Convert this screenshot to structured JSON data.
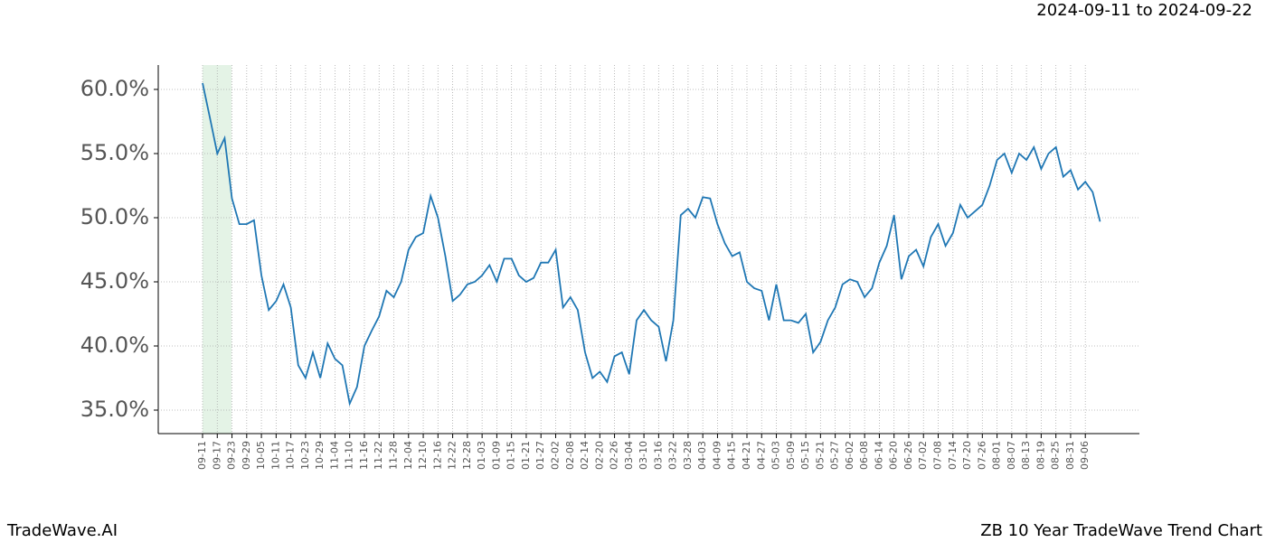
{
  "chart_data": {
    "type": "line",
    "title": "ZB 10 Year TradeWave Trend Chart",
    "date_range": "2024-09-11 to 2024-09-22",
    "brand": "TradeWave.AI",
    "categories": [
      "09-11",
      null,
      "09-17",
      null,
      "09-23",
      null,
      "09-29",
      null,
      "10-05",
      null,
      "10-11",
      null,
      "10-17",
      null,
      "10-23",
      null,
      "10-29",
      null,
      "11-04",
      null,
      "11-10",
      null,
      "11-16",
      null,
      "11-22",
      null,
      "11-28",
      null,
      "12-04",
      null,
      "12-10",
      null,
      "12-16",
      null,
      "12-22",
      null,
      "12-28",
      null,
      "01-03",
      null,
      "01-09",
      null,
      "01-15",
      null,
      "01-21",
      null,
      "01-27",
      null,
      "02-02",
      null,
      "02-08",
      null,
      "02-14",
      null,
      "02-20",
      null,
      "02-26",
      null,
      "03-04",
      null,
      "03-10",
      null,
      "03-16",
      null,
      "03-22",
      null,
      "03-28",
      null,
      "04-03",
      null,
      "04-09",
      null,
      "04-15",
      null,
      "04-21",
      null,
      "04-27",
      null,
      "05-03",
      null,
      "05-09",
      null,
      "05-15",
      null,
      "05-21",
      null,
      "05-27",
      null,
      "06-02",
      null,
      "06-08",
      null,
      "06-14",
      null,
      "06-20",
      null,
      "06-26",
      null,
      "07-02",
      null,
      "07-08",
      null,
      "07-14",
      null,
      "07-20",
      null,
      "07-26",
      null,
      "08-01",
      null,
      "08-07",
      null,
      "08-13",
      null,
      "08-19",
      null,
      "08-25",
      null,
      "08-31",
      null,
      "09-06",
      null,
      null
    ],
    "series": [
      {
        "name": "ZB 10 Year",
        "color": "#1f77b4",
        "values": [
          60.5,
          57.8,
          55.0,
          56.2,
          51.5,
          49.5,
          49.5,
          49.8,
          45.5,
          42.8,
          43.5,
          44.8,
          43.0,
          38.5,
          37.5,
          39.5,
          37.5,
          40.2,
          39.0,
          38.5,
          35.5,
          36.8,
          40.0,
          41.2,
          42.3,
          44.3,
          43.8,
          45.0,
          47.5,
          48.5,
          48.8,
          51.7,
          50.0,
          47.0,
          43.5,
          44.0,
          44.8,
          45.0,
          45.5,
          46.3,
          45.0,
          46.8,
          46.8,
          45.5,
          45.0,
          45.3,
          46.5,
          46.5,
          47.5,
          43.0,
          43.8,
          42.8,
          39.5,
          37.5,
          38.0,
          37.2,
          39.2,
          39.5,
          37.8,
          42.0,
          42.8,
          42.0,
          41.5,
          38.8,
          42.0,
          50.2,
          50.7,
          50.0,
          51.6,
          51.5,
          49.5,
          48.0,
          47.0,
          47.3,
          45.0,
          44.5,
          44.3,
          42.0,
          44.8,
          42.0,
          42.0,
          41.8,
          42.5,
          39.5,
          40.3,
          42.0,
          43.0,
          44.8,
          45.2,
          45.0,
          43.8,
          44.5,
          46.5,
          47.8,
          50.2,
          45.2,
          47.0,
          47.5,
          46.2,
          48.5,
          49.5,
          47.8,
          48.8,
          51.0,
          50.0,
          50.5,
          51.0,
          52.5,
          54.5,
          55.0,
          53.5,
          55.0,
          54.5,
          55.5,
          53.8,
          55.0,
          55.5,
          53.2,
          53.7,
          52.2,
          52.8,
          52.0,
          49.7
        ]
      }
    ],
    "ylim": [
      33.17,
      61.9
    ],
    "yticks": [
      {
        "value": 35,
        "label": "35.0%"
      },
      {
        "value": 40,
        "label": "40.0%"
      },
      {
        "value": 45,
        "label": "45.0%"
      },
      {
        "value": 50,
        "label": "50.0%"
      },
      {
        "value": 55,
        "label": "55.0%"
      },
      {
        "value": 60,
        "label": "60.0%"
      }
    ],
    "grid": true
  }
}
